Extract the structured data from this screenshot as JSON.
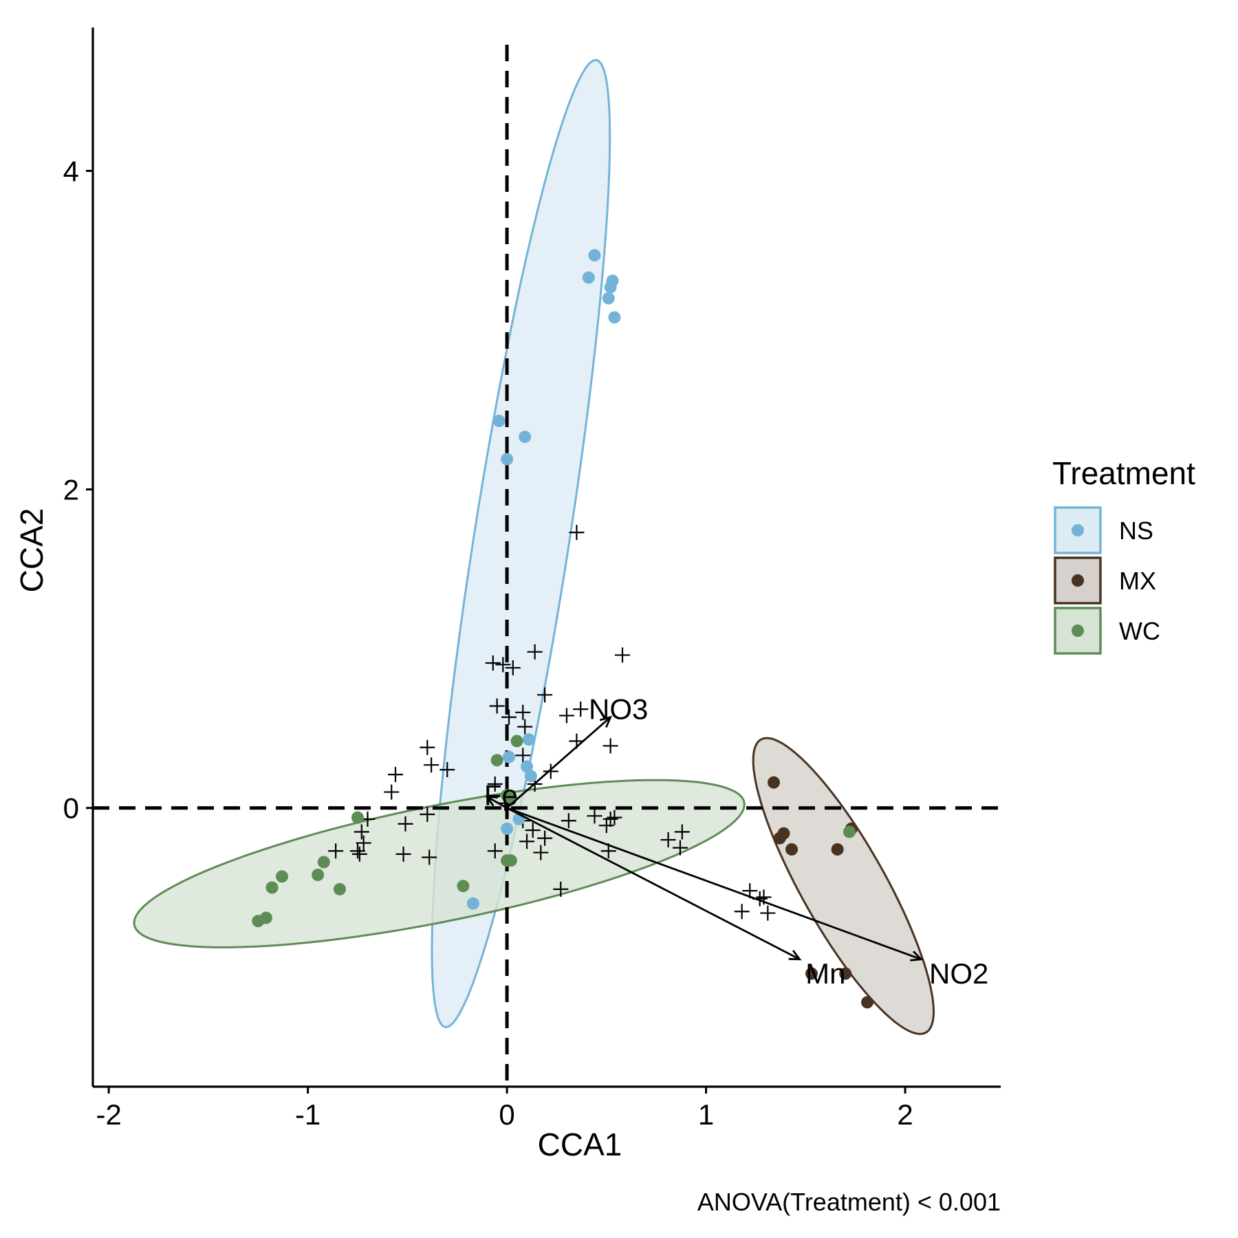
{
  "chart_data": {
    "type": "scatter",
    "xlabel": "CCA1",
    "ylabel": "CCA2",
    "caption": "ANOVA(Treatment) < 0.001",
    "xlim": [
      -2.08,
      2.48
    ],
    "ylim": [
      -1.75,
      4.9
    ],
    "xticks": [
      -2,
      -1,
      0,
      1,
      2
    ],
    "xtick_labels": [
      "-2",
      "-1",
      "0",
      "1",
      "2"
    ],
    "yticks": [
      0,
      2,
      4
    ],
    "ytick_labels": [
      "0",
      "2",
      "4"
    ],
    "reference_lines": {
      "x": 0,
      "y": 0,
      "style": "dashed"
    },
    "legend": {
      "title": "Treatment",
      "position": "right"
    },
    "series": [
      {
        "name": "NS",
        "color": "#74b3d8",
        "fill": "#ddebf5",
        "points": [
          [
            0.44,
            3.47
          ],
          [
            0.41,
            3.33
          ],
          [
            0.53,
            3.31
          ],
          [
            0.52,
            3.27
          ],
          [
            0.51,
            3.2
          ],
          [
            0.54,
            3.08
          ],
          [
            -0.04,
            2.43
          ],
          [
            0.09,
            2.33
          ],
          [
            0.0,
            2.19
          ],
          [
            0.11,
            0.43
          ],
          [
            0.01,
            0.32
          ],
          [
            0.1,
            0.26
          ],
          [
            0.12,
            0.2
          ],
          [
            0.06,
            -0.07
          ],
          [
            0.0,
            -0.13
          ],
          [
            -0.17,
            -0.6
          ]
        ],
        "ellipse": {
          "center": [
            0.07,
            1.66
          ],
          "semi_major": 3.06,
          "semi_minor": 0.24,
          "angle_deg": 82.9
        }
      },
      {
        "name": "MX",
        "color": "#4a3221",
        "fill": "#d6d1cc",
        "points": [
          [
            1.34,
            0.16
          ],
          [
            1.37,
            -0.19
          ],
          [
            1.39,
            -0.16
          ],
          [
            1.43,
            -0.26
          ],
          [
            1.66,
            -0.26
          ],
          [
            1.73,
            -0.13
          ],
          [
            1.53,
            -1.04
          ],
          [
            1.7,
            -1.04
          ],
          [
            1.81,
            -1.22
          ]
        ],
        "ellipse": {
          "center": [
            1.69,
            -0.49
          ],
          "semi_major": 1.01,
          "semi_minor": 0.22,
          "angle_deg": -66.3
        }
      },
      {
        "name": "WC",
        "color": "#5e8c55",
        "fill": "#d7e3d4",
        "points": [
          [
            -0.75,
            -0.06
          ],
          [
            -0.92,
            -0.34
          ],
          [
            -0.95,
            -0.42
          ],
          [
            -1.13,
            -0.43
          ],
          [
            -1.18,
            -0.5
          ],
          [
            -0.84,
            -0.51
          ],
          [
            -1.21,
            -0.69
          ],
          [
            -1.25,
            -0.71
          ],
          [
            -0.22,
            -0.49
          ],
          [
            0.0,
            -0.33
          ],
          [
            0.02,
            -0.33
          ],
          [
            -0.05,
            0.3
          ],
          [
            0.05,
            0.42
          ],
          [
            0.0,
            0.08
          ],
          [
            0.02,
            0.06
          ],
          [
            1.72,
            -0.15
          ]
        ],
        "ellipse": {
          "center": [
            -0.34,
            -0.35
          ],
          "semi_major": 1.58,
          "semi_minor": 0.36,
          "angle_deg": 14.4
        }
      }
    ],
    "species": [
      [
        0.35,
        1.73
      ],
      [
        0.14,
        0.98
      ],
      [
        0.58,
        0.96
      ],
      [
        -0.02,
        0.9
      ],
      [
        0.03,
        0.88
      ],
      [
        -0.07,
        0.91
      ],
      [
        0.19,
        0.71
      ],
      [
        -0.05,
        0.64
      ],
      [
        0.08,
        0.6
      ],
      [
        0.01,
        0.57
      ],
      [
        0.3,
        0.58
      ],
      [
        0.37,
        0.62
      ],
      [
        0.09,
        0.51
      ],
      [
        0.35,
        0.42
      ],
      [
        0.52,
        0.39
      ],
      [
        -0.4,
        0.38
      ],
      [
        -0.38,
        0.27
      ],
      [
        -0.3,
        0.24
      ],
      [
        -0.56,
        0.21
      ],
      [
        -0.58,
        0.1
      ],
      [
        -0.06,
        0.15
      ],
      [
        0.08,
        0.33
      ],
      [
        0.22,
        0.23
      ],
      [
        0.14,
        0.15
      ],
      [
        -0.01,
        0.03
      ],
      [
        -0.4,
        -0.04
      ],
      [
        -0.7,
        -0.07
      ],
      [
        -0.51,
        -0.1
      ],
      [
        -0.73,
        -0.15
      ],
      [
        -0.72,
        -0.22
      ],
      [
        -0.75,
        -0.27
      ],
      [
        -0.86,
        -0.27
      ],
      [
        -0.74,
        -0.29
      ],
      [
        -0.52,
        -0.29
      ],
      [
        -0.39,
        -0.31
      ],
      [
        -0.06,
        -0.27
      ],
      [
        0.1,
        -0.21
      ],
      [
        0.13,
        -0.14
      ],
      [
        0.08,
        -0.08
      ],
      [
        0.31,
        -0.08
      ],
      [
        0.44,
        -0.05
      ],
      [
        0.52,
        -0.07
      ],
      [
        0.54,
        -0.06
      ],
      [
        0.5,
        -0.11
      ],
      [
        0.51,
        -0.27
      ],
      [
        0.19,
        -0.19
      ],
      [
        0.17,
        -0.28
      ],
      [
        0.27,
        -0.51
      ],
      [
        0.81,
        -0.2
      ],
      [
        0.88,
        -0.15
      ],
      [
        0.87,
        -0.25
      ],
      [
        1.22,
        -0.52
      ],
      [
        1.27,
        -0.57
      ],
      [
        1.29,
        -0.56
      ],
      [
        1.18,
        -0.65
      ],
      [
        1.31,
        -0.66
      ]
    ],
    "vectors": [
      {
        "name": "NO3",
        "x": 0.52,
        "y": 0.57
      },
      {
        "name": "Fe",
        "x": -0.1,
        "y": 0.07
      },
      {
        "name": "Mn",
        "x": 1.47,
        "y": -0.95
      },
      {
        "name": "NO2",
        "x": 2.08,
        "y": -0.95
      }
    ],
    "vector_labels": [
      {
        "name": "NO3",
        "x": 0.56,
        "y": 0.62
      },
      {
        "name": "Fe",
        "x": -0.03,
        "y": 0.08
      },
      {
        "name": "Mn",
        "x": 1.6,
        "y": -1.04
      },
      {
        "name": "NO2",
        "x": 2.27,
        "y": -1.04
      }
    ]
  }
}
